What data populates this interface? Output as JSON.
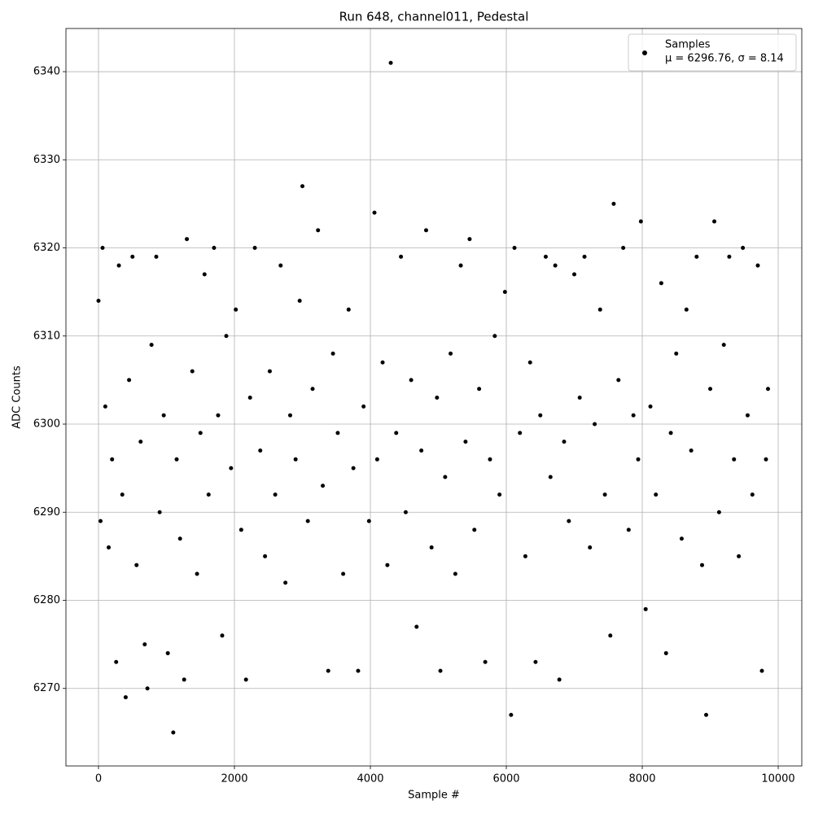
{
  "chart_data": {
    "type": "scatter",
    "title": "Run 648, channel011, Pedestal",
    "xlabel": "Sample #",
    "ylabel": "ADC Counts",
    "xlim": [
      -479,
      10347
    ],
    "ylim": [
      6261.2,
      6344.9
    ],
    "xticks": [
      0,
      2000,
      4000,
      6000,
      8000,
      10000
    ],
    "yticks": [
      6270,
      6280,
      6290,
      6300,
      6310,
      6320,
      6330,
      6340
    ],
    "grid": true,
    "legend": "upper right",
    "legend_note": "μ = 6296.76, σ = 8.14",
    "series": [
      {
        "name": "Samples",
        "color": "#000000",
        "x": [
          0,
          30,
          60,
          100,
          150,
          200,
          260,
          300,
          350,
          400,
          450,
          500,
          560,
          620,
          680,
          720,
          780,
          850,
          900,
          960,
          1020,
          1100,
          1150,
          1200,
          1260,
          1300,
          1380,
          1450,
          1500,
          1560,
          1620,
          1700,
          1760,
          1820,
          1880,
          1950,
          2020,
          2100,
          2170,
          2230,
          2300,
          2380,
          2450,
          2520,
          2600,
          2680,
          2750,
          2820,
          2900,
          2960,
          3000,
          3080,
          3150,
          3230,
          3300,
          3380,
          3450,
          3520,
          3600,
          3680,
          3750,
          3820,
          3900,
          3980,
          4060,
          4100,
          4180,
          4250,
          4300,
          4380,
          4450,
          4520,
          4600,
          4680,
          4750,
          4820,
          4900,
          4980,
          5030,
          5100,
          5180,
          5250,
          5330,
          5400,
          5460,
          5530,
          5600,
          5690,
          5760,
          5830,
          5900,
          5980,
          6070,
          6120,
          6200,
          6280,
          6350,
          6430,
          6500,
          6580,
          6650,
          6720,
          6780,
          6850,
          6920,
          7000,
          7080,
          7150,
          7230,
          7300,
          7380,
          7450,
          7530,
          7580,
          7650,
          7720,
          7800,
          7870,
          7940,
          7980,
          8050,
          8120,
          8200,
          8280,
          8350,
          8420,
          8500,
          8580,
          8650,
          8720,
          8800,
          8880,
          8940,
          9000,
          9060,
          9130,
          9200,
          9280,
          9350,
          9420,
          9480,
          9550,
          9620,
          9700,
          9760,
          9820,
          9850
        ],
        "y": [
          6314,
          6289,
          6320,
          6302,
          6286,
          6296,
          6273,
          6318,
          6292,
          6269,
          6305,
          6319,
          6284,
          6298,
          6275,
          6270,
          6309,
          6319,
          6290,
          6301,
          6274,
          6265,
          6296,
          6287,
          6271,
          6321,
          6306,
          6283,
          6299,
          6317,
          6292,
          6320,
          6301,
          6276,
          6310,
          6295,
          6313,
          6288,
          6271,
          6303,
          6320,
          6297,
          6285,
          6306,
          6292,
          6318,
          6282,
          6301,
          6296,
          6314,
          6327,
          6289,
          6304,
          6322,
          6293,
          6272,
          6308,
          6299,
          6283,
          6313,
          6295,
          6272,
          6302,
          6289,
          6324,
          6296,
          6307,
          6284,
          6341,
          6299,
          6319,
          6290,
          6305,
          6277,
          6297,
          6322,
          6286,
          6303,
          6272,
          6294,
          6308,
          6283,
          6318,
          6298,
          6321,
          6288,
          6304,
          6273,
          6296,
          6310,
          6292,
          6315,
          6267,
          6320,
          6299,
          6285,
          6307,
          6273,
          6301,
          6319,
          6294,
          6318,
          6271,
          6298,
          6289,
          6317,
          6303,
          6319,
          6286,
          6300,
          6313,
          6292,
          6276,
          6325,
          6305,
          6320,
          6288,
          6301,
          6296,
          6323,
          6279,
          6302,
          6292,
          6316,
          6274,
          6299,
          6308,
          6287,
          6313,
          6297,
          6319,
          6284,
          6267,
          6304,
          6323,
          6290,
          6309,
          6319,
          6296,
          6285,
          6320,
          6301,
          6292,
          6318,
          6272,
          6296,
          6304
        ]
      }
    ]
  }
}
